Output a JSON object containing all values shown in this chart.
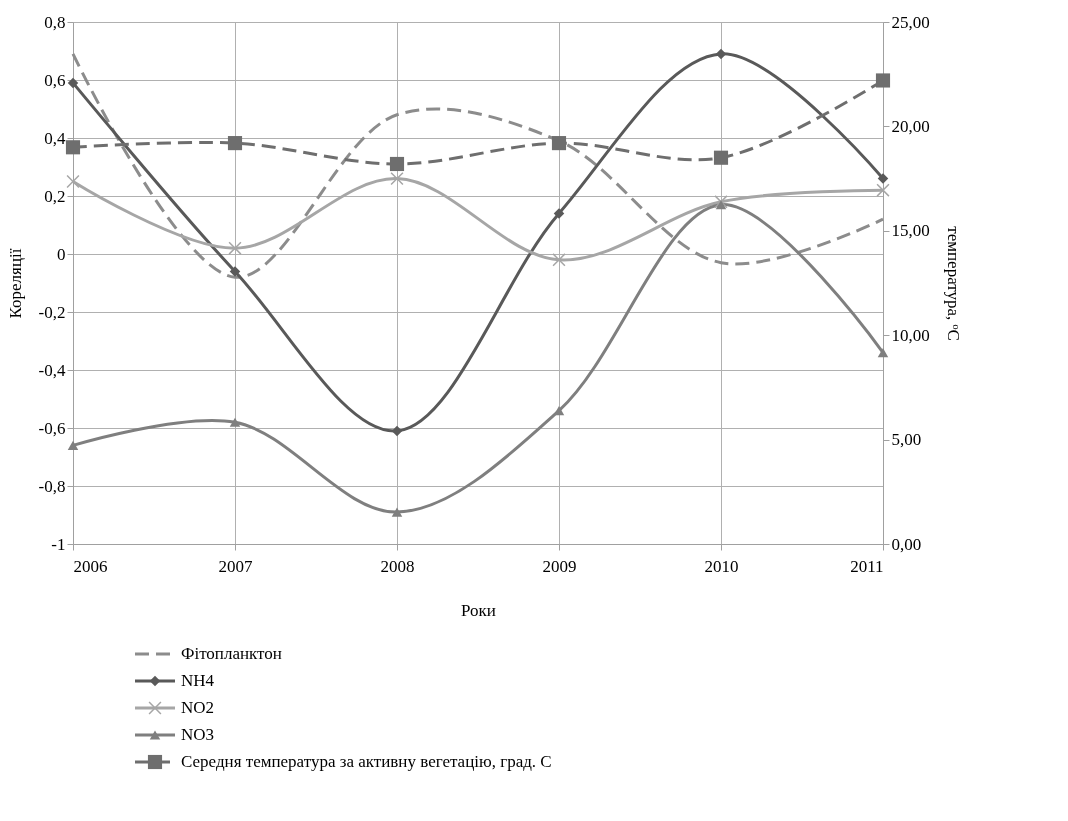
{
  "chart_data": {
    "type": "line",
    "xlabel": "Роки",
    "ylabel": "Кореляції",
    "y2label": "температура, ᵒC",
    "categories": [
      "2006",
      "2007",
      "2008",
      "2009",
      "2010",
      "2011"
    ],
    "series": [
      {
        "name": "Фітопланктон",
        "color": "#8c8c8c",
        "values": [
          0.69,
          -0.08,
          0.48,
          0.39,
          -0.03,
          0.12
        ],
        "marker": "none",
        "line_style": "dashed"
      },
      {
        "name": "NH4",
        "color": "#595959",
        "values": [
          0.59,
          -0.06,
          -0.61,
          0.14,
          0.69,
          0.26
        ],
        "marker": "diamond",
        "line_style": "solid"
      },
      {
        "name": "NO2",
        "color": "#a6a6a6",
        "values": [
          0.25,
          0.02,
          0.26,
          -0.02,
          0.18,
          0.22
        ],
        "marker": "cross",
        "line_style": "solid"
      },
      {
        "name": "NO3",
        "color": "#7f7f7f",
        "values": [
          -0.66,
          -0.58,
          -0.89,
          -0.54,
          0.17,
          -0.34
        ],
        "marker": "triangle",
        "line_style": "solid"
      },
      {
        "name": "Середня температура за активну вегетацію, град. С",
        "color": "#6e6e6e",
        "values": [
          19.0,
          19.2,
          18.2,
          19.2,
          18.5,
          22.2
        ],
        "marker": "square",
        "line_style": "dashed",
        "axis": "y2"
      }
    ],
    "ylim": [
      -1,
      0.8
    ],
    "yticks": [
      {
        "value": -1,
        "label": "-1"
      },
      {
        "value": -0.8,
        "label": "-0,8"
      },
      {
        "value": -0.6,
        "label": "-0,6"
      },
      {
        "value": -0.4,
        "label": "-0,4"
      },
      {
        "value": -0.2,
        "label": "-0,2"
      },
      {
        "value": 0,
        "label": "0"
      },
      {
        "value": 0.2,
        "label": "0,2"
      },
      {
        "value": 0.4,
        "label": "0,4"
      },
      {
        "value": 0.6,
        "label": "0,6"
      },
      {
        "value": 0.8,
        "label": "0,8"
      }
    ],
    "y2lim": [
      0,
      25
    ],
    "y2ticks": [
      {
        "value": 0,
        "label": "0,00"
      },
      {
        "value": 5,
        "label": "5,00"
      },
      {
        "value": 10,
        "label": "10,00"
      },
      {
        "value": 15,
        "label": "15,00"
      },
      {
        "value": 20,
        "label": "20,00"
      },
      {
        "value": 25,
        "label": "25,00"
      }
    ],
    "grid": true,
    "legend": "bottom"
  }
}
